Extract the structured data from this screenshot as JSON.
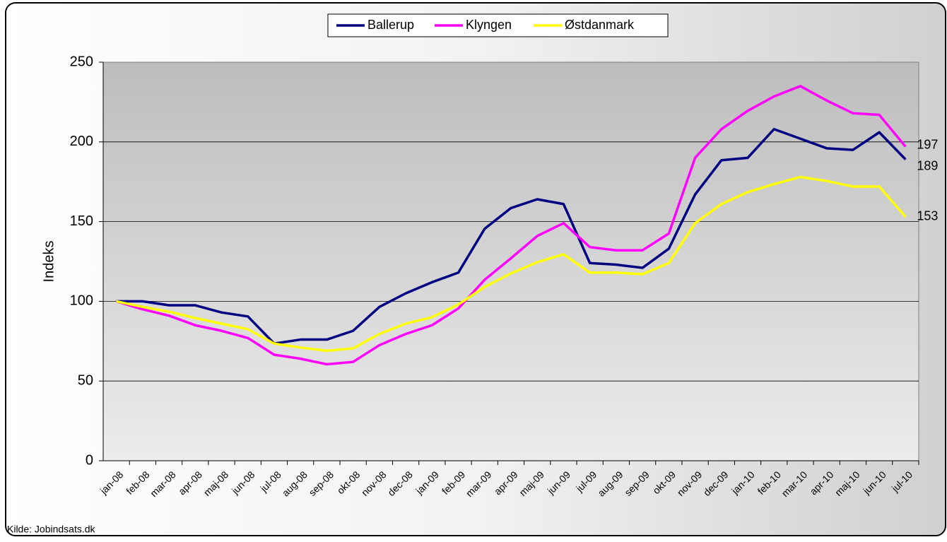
{
  "chart_data": {
    "type": "line",
    "y_label": "Indeks",
    "source": "Kilde: Jobindsats.dk",
    "categories": [
      "jan-08",
      "feb-08",
      "mar-08",
      "apr-08",
      "maj-08",
      "jun-08",
      "jul-08",
      "aug-08",
      "sep-08",
      "okt-08",
      "nov-08",
      "dec-08",
      "jan-09",
      "feb-09",
      "mar-09",
      "apr-09",
      "maj-09",
      "jun-09",
      "jul-09",
      "aug-09",
      "sep-09",
      "okt-09",
      "nov-09",
      "dec-09",
      "jan-10",
      "feb-10",
      "mar-10",
      "apr-10",
      "maj-10",
      "jun-10",
      "jul-10"
    ],
    "series": [
      {
        "name": "Ballerup",
        "color": "#000080",
        "values": [
          100,
          100,
          97.5,
          97.5,
          93,
          90.5,
          73.5,
          76,
          76,
          81.5,
          96.5,
          105,
          112,
          118,
          145.5,
          158.5,
          164,
          161,
          124,
          123,
          121,
          133,
          167,
          188.5,
          190,
          208,
          202,
          196,
          195,
          206,
          189
        ]
      },
      {
        "name": "Klyngen",
        "color": "#ff00ff",
        "values": [
          100,
          95,
          91,
          85,
          81.5,
          77,
          66.5,
          64,
          60.5,
          62,
          72.5,
          79.5,
          85,
          95.5,
          113.5,
          127,
          141,
          149,
          134,
          132,
          132,
          142.5,
          190,
          208,
          219.5,
          228.5,
          235,
          226,
          218,
          217,
          197
        ]
      },
      {
        "name": "Østdanmark",
        "color": "#ffff00",
        "values": [
          100,
          96.5,
          93.5,
          89.5,
          86,
          82.5,
          73.5,
          71,
          69,
          70.5,
          79.5,
          86,
          90,
          98,
          109,
          117.5,
          124.5,
          129.5,
          118,
          118,
          117,
          124,
          149,
          161,
          168.5,
          173.5,
          178,
          175.5,
          172,
          172,
          153
        ]
      }
    ],
    "ylim": [
      0,
      250
    ],
    "yticks": [
      0,
      50,
      100,
      150,
      200,
      250
    ],
    "grid": true,
    "legend": "top"
  }
}
